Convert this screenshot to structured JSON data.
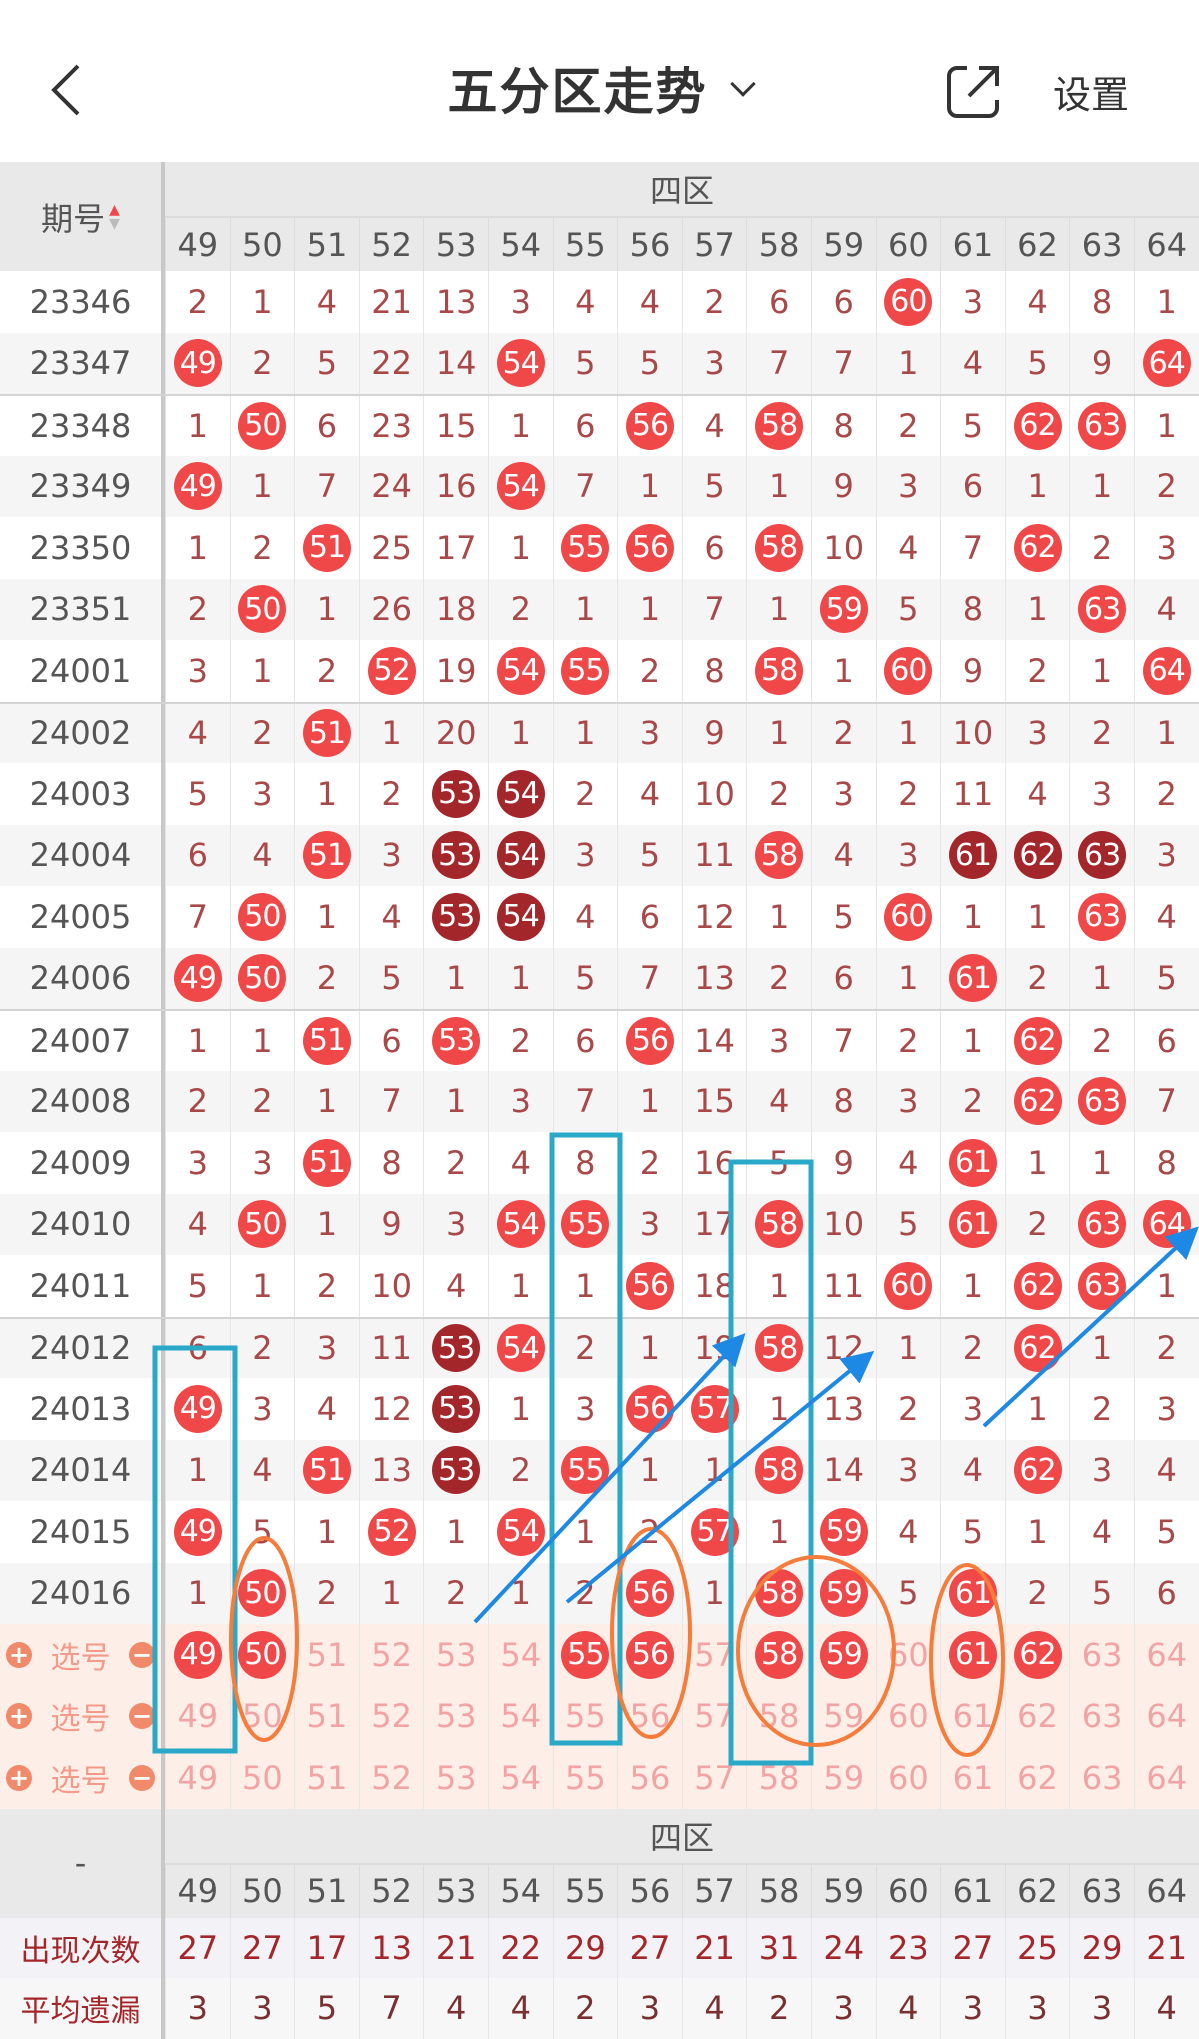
{
  "nav": {
    "title": "五分区走势",
    "settings_label": "设置",
    "back_icon": "chevron-left-icon",
    "share_icon": "share-icon"
  },
  "table": {
    "period_header": "期号",
    "zone_label": "四区",
    "columns": [
      "49",
      "50",
      "51",
      "52",
      "53",
      "54",
      "55",
      "56",
      "57",
      "58",
      "59",
      "60",
      "61",
      "62",
      "63",
      "64"
    ],
    "rows": [
      {
        "period": "23346",
        "values": [
          2,
          1,
          4,
          21,
          13,
          3,
          4,
          4,
          2,
          6,
          6,
          60,
          3,
          4,
          8,
          1
        ],
        "hits": [
          60
        ],
        "repeat_hits": []
      },
      {
        "period": "23347",
        "values": [
          49,
          2,
          5,
          22,
          14,
          54,
          5,
          5,
          3,
          7,
          7,
          1,
          4,
          5,
          9,
          64
        ],
        "hits": [
          49,
          54,
          64
        ],
        "repeat_hits": []
      },
      {
        "period": "23348",
        "values": [
          1,
          50,
          6,
          23,
          15,
          1,
          6,
          56,
          4,
          58,
          8,
          2,
          5,
          62,
          63,
          1
        ],
        "hits": [
          50,
          56,
          58,
          62,
          63
        ],
        "repeat_hits": []
      },
      {
        "period": "23349",
        "values": [
          49,
          1,
          7,
          24,
          16,
          54,
          7,
          1,
          5,
          1,
          9,
          3,
          6,
          1,
          1,
          2
        ],
        "hits": [
          49,
          54
        ],
        "repeat_hits": []
      },
      {
        "period": "23350",
        "values": [
          1,
          2,
          51,
          25,
          17,
          1,
          55,
          56,
          6,
          58,
          10,
          4,
          7,
          62,
          2,
          3
        ],
        "hits": [
          51,
          55,
          56,
          58,
          62
        ],
        "repeat_hits": []
      },
      {
        "period": "23351",
        "values": [
          2,
          50,
          1,
          26,
          18,
          2,
          1,
          1,
          7,
          1,
          59,
          5,
          8,
          1,
          63,
          4
        ],
        "hits": [
          50,
          59,
          63
        ],
        "repeat_hits": []
      },
      {
        "period": "24001",
        "values": [
          3,
          1,
          2,
          52,
          19,
          54,
          55,
          2,
          8,
          58,
          1,
          60,
          9,
          2,
          1,
          64
        ],
        "hits": [
          52,
          54,
          55,
          58,
          60,
          64
        ],
        "repeat_hits": []
      },
      {
        "period": "24002",
        "values": [
          4,
          2,
          51,
          1,
          20,
          1,
          1,
          3,
          9,
          1,
          2,
          1,
          10,
          3,
          2,
          1
        ],
        "hits": [
          51
        ],
        "repeat_hits": []
      },
      {
        "period": "24003",
        "values": [
          5,
          3,
          1,
          2,
          53,
          54,
          2,
          4,
          10,
          2,
          3,
          2,
          11,
          4,
          3,
          2
        ],
        "hits": [],
        "repeat_hits": [
          53,
          54
        ]
      },
      {
        "period": "24004",
        "values": [
          6,
          4,
          51,
          3,
          53,
          54,
          3,
          5,
          11,
          58,
          4,
          3,
          61,
          62,
          63,
          3
        ],
        "hits": [
          51,
          58
        ],
        "repeat_hits": [
          53,
          54,
          61,
          62,
          63
        ]
      },
      {
        "period": "24005",
        "values": [
          7,
          50,
          1,
          4,
          53,
          54,
          4,
          6,
          12,
          1,
          5,
          60,
          1,
          1,
          63,
          4
        ],
        "hits": [
          50,
          60,
          63
        ],
        "repeat_hits": [
          53,
          54
        ]
      },
      {
        "period": "24006",
        "values": [
          49,
          50,
          2,
          5,
          1,
          1,
          5,
          7,
          13,
          2,
          6,
          1,
          61,
          2,
          1,
          5
        ],
        "hits": [
          49,
          50,
          61
        ],
        "repeat_hits": []
      },
      {
        "period": "24007",
        "values": [
          1,
          1,
          51,
          6,
          53,
          2,
          6,
          56,
          14,
          3,
          7,
          2,
          1,
          62,
          2,
          6
        ],
        "hits": [
          51,
          53,
          56,
          62
        ],
        "repeat_hits": []
      },
      {
        "period": "24008",
        "values": [
          2,
          2,
          1,
          7,
          1,
          3,
          7,
          1,
          15,
          4,
          8,
          3,
          2,
          62,
          63,
          7
        ],
        "hits": [
          62,
          63
        ],
        "repeat_hits": []
      },
      {
        "period": "24009",
        "values": [
          3,
          3,
          51,
          8,
          2,
          4,
          8,
          2,
          16,
          5,
          9,
          4,
          61,
          1,
          1,
          8
        ],
        "hits": [
          51,
          61
        ],
        "repeat_hits": []
      },
      {
        "period": "24010",
        "values": [
          4,
          50,
          1,
          9,
          3,
          54,
          55,
          3,
          17,
          58,
          10,
          5,
          61,
          2,
          63,
          64
        ],
        "hits": [
          50,
          54,
          55,
          58,
          61,
          63,
          64
        ],
        "repeat_hits": []
      },
      {
        "period": "24011",
        "values": [
          5,
          1,
          2,
          10,
          4,
          1,
          1,
          56,
          18,
          1,
          11,
          60,
          1,
          62,
          63,
          1
        ],
        "hits": [
          56,
          60,
          62,
          63
        ],
        "repeat_hits": []
      },
      {
        "period": "24012",
        "values": [
          6,
          2,
          3,
          11,
          53,
          54,
          2,
          1,
          19,
          58,
          12,
          1,
          2,
          62,
          1,
          2
        ],
        "hits": [
          54,
          58,
          62
        ],
        "repeat_hits": [
          53
        ]
      },
      {
        "period": "24013",
        "values": [
          49,
          3,
          4,
          12,
          53,
          1,
          3,
          56,
          57,
          1,
          13,
          2,
          3,
          1,
          2,
          3
        ],
        "hits": [
          49,
          56,
          57
        ],
        "repeat_hits": [
          53
        ]
      },
      {
        "period": "24014",
        "values": [
          1,
          4,
          51,
          13,
          53,
          2,
          55,
          1,
          1,
          58,
          14,
          3,
          4,
          62,
          3,
          4
        ],
        "hits": [
          51,
          55,
          58,
          62
        ],
        "repeat_hits": [
          53
        ]
      },
      {
        "period": "24015",
        "values": [
          49,
          5,
          1,
          52,
          1,
          54,
          1,
          2,
          57,
          1,
          59,
          4,
          5,
          1,
          4,
          5
        ],
        "hits": [
          49,
          52,
          54,
          57,
          59
        ],
        "repeat_hits": []
      },
      {
        "period": "24016",
        "values": [
          1,
          50,
          2,
          1,
          2,
          1,
          2,
          56,
          1,
          58,
          59,
          5,
          61,
          2,
          5,
          6
        ],
        "hits": [
          50,
          56,
          58,
          59,
          61
        ],
        "repeat_hits": []
      }
    ],
    "pick_rows": [
      {
        "label": "选号",
        "selected": [
          49,
          50,
          55,
          56,
          58,
          59,
          61,
          62
        ]
      },
      {
        "label": "选号",
        "selected": []
      },
      {
        "label": "选号",
        "selected": []
      }
    ],
    "footer": {
      "corner": "-",
      "zone_label": "四区",
      "stats": [
        {
          "label": "出现次数",
          "values": [
            27,
            27,
            17,
            13,
            21,
            22,
            29,
            27,
            21,
            31,
            24,
            23,
            27,
            25,
            29,
            21
          ]
        },
        {
          "label": "平均遗漏",
          "values": [
            3,
            3,
            5,
            7,
            4,
            4,
            2,
            3,
            4,
            2,
            3,
            4,
            3,
            3,
            3,
            4
          ]
        }
      ]
    }
  },
  "colors": {
    "ball": "#f04848",
    "repeat_ball": "#a3262a",
    "annotation_box": "#2aa8c8",
    "annotation_ellipse": "#f57c3a",
    "annotation_arrow": "#1e88e5"
  }
}
